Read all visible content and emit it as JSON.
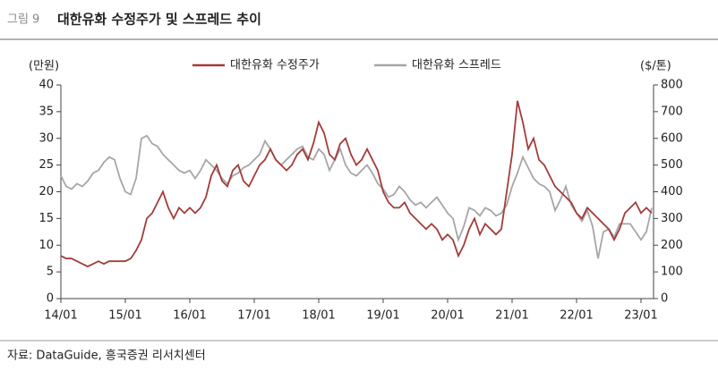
{
  "header": {
    "label": "그림 9",
    "title": "대한유화 수정주가 및 스프레드 추이"
  },
  "chart_data": {
    "type": "line",
    "y_label": "(만원)",
    "y2_label": "($/톤)",
    "categories": [
      "14/01",
      null,
      null,
      null,
      null,
      null,
      null,
      null,
      null,
      null,
      null,
      null,
      "15/01",
      null,
      null,
      null,
      null,
      null,
      null,
      null,
      null,
      null,
      null,
      null,
      "16/01",
      null,
      null,
      null,
      null,
      null,
      null,
      null,
      null,
      null,
      null,
      null,
      "17/01",
      null,
      null,
      null,
      null,
      null,
      null,
      null,
      null,
      null,
      null,
      null,
      "18/01",
      null,
      null,
      null,
      null,
      null,
      null,
      null,
      null,
      null,
      null,
      null,
      "19/01",
      null,
      null,
      null,
      null,
      null,
      null,
      null,
      null,
      null,
      null,
      null,
      "20/01",
      null,
      null,
      null,
      null,
      null,
      null,
      null,
      null,
      null,
      null,
      null,
      "21/01",
      null,
      null,
      null,
      null,
      null,
      null,
      null,
      null,
      null,
      null,
      null,
      "22/01",
      null,
      null,
      null,
      null,
      null,
      null,
      null,
      null,
      null,
      null,
      null,
      "23/01",
      null,
      null
    ],
    "series": [
      {
        "name": "대한유화 수정주가",
        "color": "#a33b3b",
        "values": [
          8,
          7.5,
          7.5,
          7,
          6.5,
          6,
          6.5,
          7,
          6.5,
          7,
          7,
          7,
          7,
          7.5,
          9,
          11,
          15,
          16,
          18,
          20,
          17,
          15,
          17,
          16,
          17,
          16,
          17,
          19,
          23,
          25,
          22,
          21,
          24,
          25,
          22,
          21,
          23,
          25,
          26,
          28,
          26,
          25,
          24,
          25,
          27,
          28,
          26,
          29,
          33,
          31,
          27,
          26,
          29,
          30,
          27,
          25,
          26,
          28,
          26,
          24,
          20,
          18,
          17,
          17,
          18,
          16,
          15,
          14,
          13,
          14,
          13,
          11,
          12,
          11,
          8,
          10,
          13,
          15,
          12,
          14,
          13,
          12,
          13,
          20,
          27,
          37,
          33,
          28,
          30,
          26,
          25,
          23,
          21,
          20,
          19,
          18,
          16,
          15,
          17,
          16,
          15,
          14,
          13,
          11,
          13,
          16,
          17,
          18,
          16,
          17,
          16
        ]
      },
      {
        "name": "대한유화 스프레드",
        "color": "#a6a6a6",
        "axis": "y2",
        "values": [
          460,
          420,
          410,
          430,
          420,
          440,
          470,
          480,
          510,
          530,
          520,
          450,
          400,
          390,
          450,
          600,
          610,
          580,
          570,
          540,
          520,
          500,
          480,
          470,
          480,
          450,
          480,
          520,
          500,
          480,
          450,
          430,
          460,
          470,
          490,
          500,
          520,
          540,
          590,
          560,
          520,
          500,
          520,
          540,
          560,
          570,
          530,
          520,
          560,
          540,
          480,
          520,
          560,
          500,
          470,
          460,
          480,
          500,
          470,
          430,
          410,
          380,
          390,
          420,
          400,
          370,
          350,
          360,
          340,
          360,
          380,
          350,
          320,
          300,
          220,
          270,
          340,
          330,
          310,
          340,
          330,
          310,
          320,
          350,
          420,
          470,
          530,
          490,
          450,
          430,
          420,
          400,
          330,
          370,
          420,
          350,
          320,
          290,
          330,
          270,
          150,
          250,
          260,
          230,
          280,
          280,
          280,
          250,
          220,
          250,
          340
        ]
      }
    ],
    "ylim": [
      0,
      40
    ],
    "yticks": [
      0,
      5,
      10,
      15,
      20,
      25,
      30,
      35,
      40
    ],
    "y2lim": [
      0,
      800
    ],
    "y2ticks": [
      0,
      100,
      200,
      300,
      400,
      500,
      600,
      700,
      800
    ],
    "grid": false
  },
  "footer": {
    "source": "자료: DataGuide, 흥국증권 리서치센터"
  }
}
